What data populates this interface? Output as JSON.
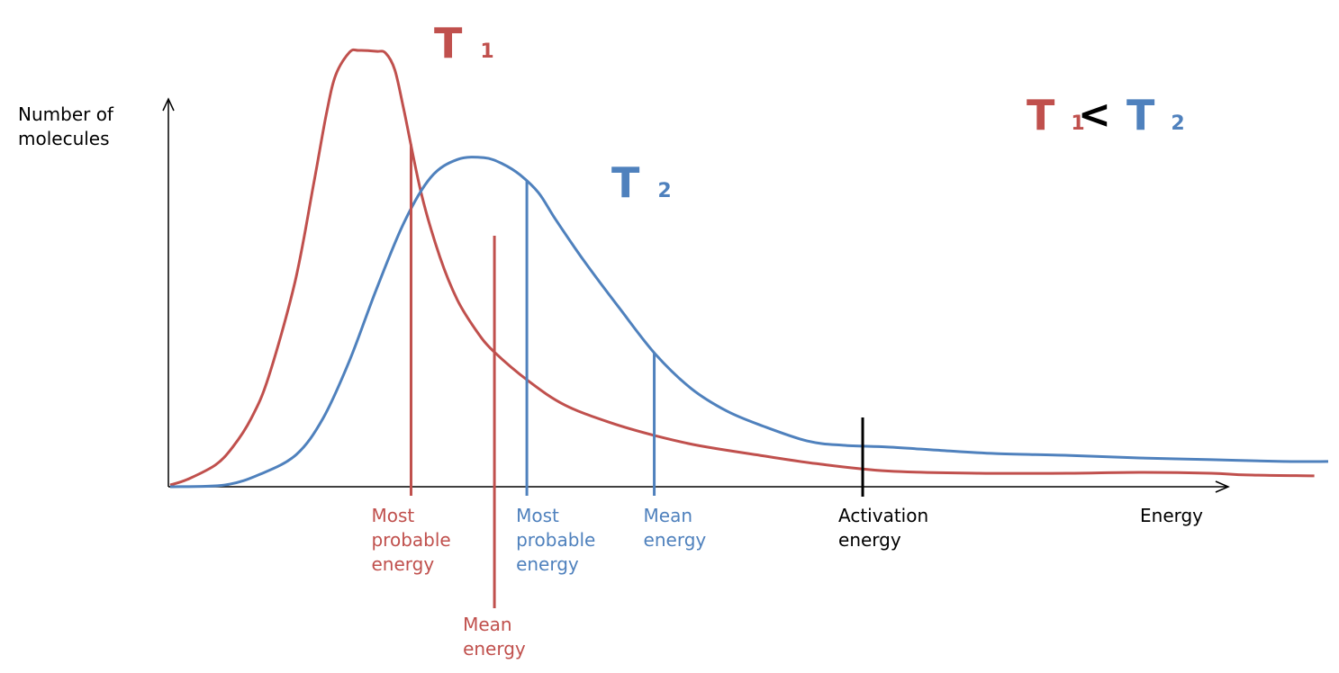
{
  "chart_data": {
    "type": "line",
    "xlabel": "Energy",
    "ylabel": [
      "Number of",
      "molecules"
    ],
    "xlim": [
      0,
      100
    ],
    "ylim": [
      0,
      100
    ],
    "grid": false,
    "colors": {
      "t1": "#c0504d",
      "t2": "#4f81bd",
      "activation": "#000000"
    },
    "series": [
      {
        "name": "T1",
        "subscript": "1",
        "x": [
          0,
          1.5,
          3.9,
          5.4,
          7.0,
          8.5,
          10.8,
          12.4,
          13.5,
          14.3,
          15.5,
          16.3,
          17.8,
          18.6,
          19.4,
          20.2,
          21.7,
          23.3,
          24.8,
          26.4,
          27.9,
          31.0,
          34.1,
          38.0,
          41.9,
          45.7,
          51.2,
          55.8,
          62.0,
          69.8,
          77.5,
          83.7,
          89.9,
          93.0,
          98.8
        ],
        "y": [
          0.4,
          1.7,
          5.0,
          9.1,
          15.7,
          25.2,
          47.2,
          69.6,
          85.6,
          94.4,
          99.6,
          100,
          99.8,
          99.4,
          95.5,
          86.1,
          67.0,
          52.6,
          42.8,
          35.9,
          31.1,
          24.1,
          18.7,
          14.7,
          11.7,
          9.4,
          7.1,
          5.3,
          3.6,
          3.1,
          3.1,
          3.3,
          3.1,
          2.7,
          2.5
        ]
      },
      {
        "name": "T2",
        "subscript": "2",
        "x": [
          0,
          4.7,
          7.8,
          10.9,
          13.2,
          15.5,
          17.8,
          20.2,
          22.5,
          24.8,
          27.1,
          28.7,
          30.2,
          31.8,
          33.3,
          35.7,
          38.8,
          41.9,
          45.0,
          48.1,
          51.2,
          55.0,
          58.1,
          62.0,
          66.7,
          71.3,
          77.5,
          83.7,
          89.9,
          96.1,
          100
        ],
        "y": [
          0,
          0.4,
          2.9,
          7.4,
          15.7,
          29.0,
          45.2,
          60.6,
          70.9,
          75.0,
          75.4,
          74.0,
          71.5,
          67.4,
          61.2,
          51.9,
          40.9,
          30.4,
          22.5,
          17.3,
          13.9,
          10.5,
          9.5,
          9.1,
          8.3,
          7.6,
          7.2,
          6.6,
          6.2,
          5.8,
          5.8
        ]
      }
    ],
    "markers": [
      {
        "x": 20.8,
        "label": [
          "Most",
          "probable",
          "energy"
        ],
        "series": "T1"
      },
      {
        "x": 28.0,
        "label": [
          "Mean",
          "energy"
        ],
        "series": "T1"
      },
      {
        "x": 30.8,
        "label": [
          "Most",
          "probable",
          "energy"
        ],
        "series": "T2"
      },
      {
        "x": 41.8,
        "label": [
          "Mean",
          "energy"
        ],
        "series": "T2"
      },
      {
        "x": 59.8,
        "label": [
          "Activation",
          "energy"
        ],
        "series": "activation"
      }
    ],
    "comparison": {
      "left": "T",
      "left_sub": "1",
      "operator": "<",
      "right": "T",
      "right_sub": "2"
    }
  }
}
